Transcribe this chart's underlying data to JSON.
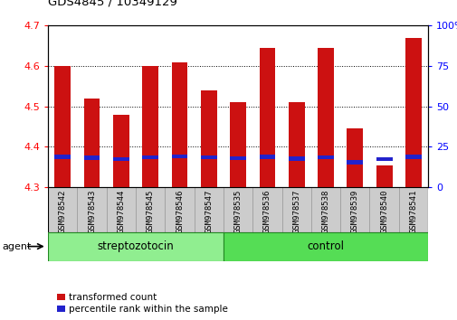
{
  "title": "GDS4845 / 10349129",
  "categories": [
    "GSM978542",
    "GSM978543",
    "GSM978544",
    "GSM978545",
    "GSM978546",
    "GSM978547",
    "GSM978535",
    "GSM978536",
    "GSM978537",
    "GSM978538",
    "GSM978539",
    "GSM978540",
    "GSM978541"
  ],
  "transformed_count": [
    4.6,
    4.52,
    4.48,
    4.6,
    4.61,
    4.54,
    4.51,
    4.645,
    4.51,
    4.645,
    4.445,
    4.355,
    4.67
  ],
  "percentile_rank": [
    4.375,
    4.373,
    4.37,
    4.374,
    4.376,
    4.374,
    4.372,
    4.375,
    4.371,
    4.374,
    4.362,
    4.37,
    4.375
  ],
  "bar_bottom": 4.3,
  "ylim": [
    4.3,
    4.7
  ],
  "y_left_ticks": [
    4.3,
    4.4,
    4.5,
    4.6,
    4.7
  ],
  "y_right_ticks": [
    0,
    25,
    50,
    75,
    100
  ],
  "bar_color_red": "#cc1111",
  "bar_color_blue": "#2222cc",
  "plot_bg": "#ffffff",
  "tick_cell_color": "#cccccc",
  "tick_cell_edge": "#999999",
  "group1_label": "streptozotocin",
  "group2_label": "control",
  "group1_indices": [
    0,
    1,
    2,
    3,
    4,
    5
  ],
  "group2_indices": [
    6,
    7,
    8,
    9,
    10,
    11,
    12
  ],
  "group1_color": "#90ee90",
  "group2_color": "#55dd55",
  "group_border": "#228822",
  "agent_label": "agent",
  "legend_red": "transformed count",
  "legend_blue": "percentile rank within the sample",
  "bar_width": 0.55,
  "blue_bar_height": 0.01,
  "figure_bg": "#ffffff"
}
